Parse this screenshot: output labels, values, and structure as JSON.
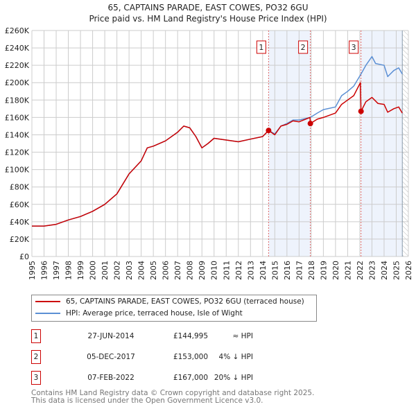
{
  "chart_data": {
    "type": "line",
    "title": "65, CAPTAINS PARADE, EAST COWES, PO32 6GU",
    "subtitle": "Price paid vs. HM Land Registry's House Price Index (HPI)",
    "xlim": [
      1995,
      2026
    ],
    "ylim": [
      0,
      260000
    ],
    "y_ticks": [
      0,
      20000,
      40000,
      60000,
      80000,
      100000,
      120000,
      140000,
      160000,
      180000,
      200000,
      220000,
      240000,
      260000
    ],
    "y_tick_labels": [
      "£0",
      "£20K",
      "£40K",
      "£60K",
      "£80K",
      "£100K",
      "£120K",
      "£140K",
      "£160K",
      "£180K",
      "£200K",
      "£220K",
      "£240K",
      "£260K"
    ],
    "x_ticks": [
      1995,
      1996,
      1997,
      1998,
      1999,
      2000,
      2001,
      2002,
      2003,
      2004,
      2005,
      2006,
      2007,
      2008,
      2009,
      2010,
      2011,
      2012,
      2013,
      2014,
      2015,
      2016,
      2017,
      2018,
      2019,
      2020,
      2021,
      2022,
      2023,
      2024,
      2025,
      2026
    ],
    "grid": true,
    "series": [
      {
        "name": "65, CAPTAINS PARADE, EAST COWES, PO32 6GU (terraced house)",
        "color": "#cc0000",
        "x": [
          1995,
          1996,
          1997,
          1998,
          1999,
          2000,
          2001,
          2002,
          2003,
          2004,
          2004.5,
          2005,
          2006,
          2007,
          2007.5,
          2008,
          2008.5,
          2009,
          2009.5,
          2010,
          2011,
          2012,
          2013,
          2014,
          2014.49,
          2015,
          2015.5,
          2016,
          2016.5,
          2017,
          2017.9,
          2017.93,
          2018.5,
          2019,
          2020,
          2020.5,
          2021,
          2021.5,
          2022.05,
          2022.1,
          2022.5,
          2023,
          2023.5,
          2024,
          2024.3,
          2024.8,
          2025.2,
          2025.5
        ],
        "y": [
          35000,
          35000,
          37000,
          42000,
          46000,
          52000,
          60000,
          72000,
          95000,
          110000,
          125000,
          127000,
          133000,
          143000,
          150000,
          148000,
          138000,
          125000,
          130000,
          136000,
          134000,
          132000,
          135000,
          138000,
          144995,
          140000,
          150000,
          152000,
          156000,
          155000,
          160000,
          153000,
          158000,
          160000,
          165000,
          175000,
          180000,
          185000,
          200000,
          167000,
          178000,
          183000,
          176000,
          175000,
          166000,
          170000,
          172000,
          165000
        ]
      },
      {
        "name": "HPI: Average price, terraced house, Isle of Wight",
        "color": "#5b8fd4",
        "x": [
          1995,
          1996,
          1997,
          1998,
          1999,
          2000,
          2001,
          2002,
          2003,
          2004,
          2004.5,
          2005,
          2006,
          2007,
          2007.5,
          2008,
          2008.5,
          2009,
          2009.5,
          2010,
          2011,
          2012,
          2013,
          2014,
          2014.49,
          2015,
          2015.5,
          2016,
          2016.5,
          2017,
          2017.93,
          2018.5,
          2019,
          2020,
          2020.5,
          2021,
          2021.5,
          2022.1,
          2022.5,
          2023,
          2023.3,
          2024,
          2024.3,
          2024.8,
          2025.2,
          2025.5
        ],
        "y": [
          35000,
          35000,
          37000,
          42000,
          46000,
          52000,
          60000,
          72000,
          95000,
          110000,
          125000,
          127000,
          133000,
          143000,
          150000,
          148000,
          138000,
          125000,
          130000,
          136000,
          134000,
          132000,
          135000,
          138000,
          145000,
          141000,
          150000,
          153000,
          157000,
          157000,
          160000,
          165000,
          169000,
          172000,
          185000,
          190000,
          196000,
          210000,
          220000,
          230000,
          222000,
          220000,
          207000,
          214000,
          217000,
          210000
        ]
      }
    ],
    "sales": [
      {
        "label": "1",
        "x": 2014.49,
        "price": 144995,
        "date": "27-JUN-2014",
        "price_text": "£144,995",
        "relation": "≈ HPI"
      },
      {
        "label": "2",
        "x": 2017.93,
        "price": 153000,
        "date": "05-DEC-2017",
        "price_text": "£153,000",
        "relation": "4% ↓ HPI"
      },
      {
        "label": "3",
        "x": 2022.1,
        "price": 167000,
        "date": "07-FEB-2022",
        "price_text": "£167,000",
        "relation": "20% ↓ HPI"
      }
    ],
    "shaded_ranges": [
      [
        2014.49,
        2017.93
      ],
      [
        2022.1,
        2025.5
      ]
    ],
    "hatched_from": 2025.5,
    "legend_placement": "below"
  },
  "footer": {
    "line1": "Contains HM Land Registry data © Crown copyright and database right 2025.",
    "line2": "This data is licensed under the Open Government Licence v3.0."
  }
}
